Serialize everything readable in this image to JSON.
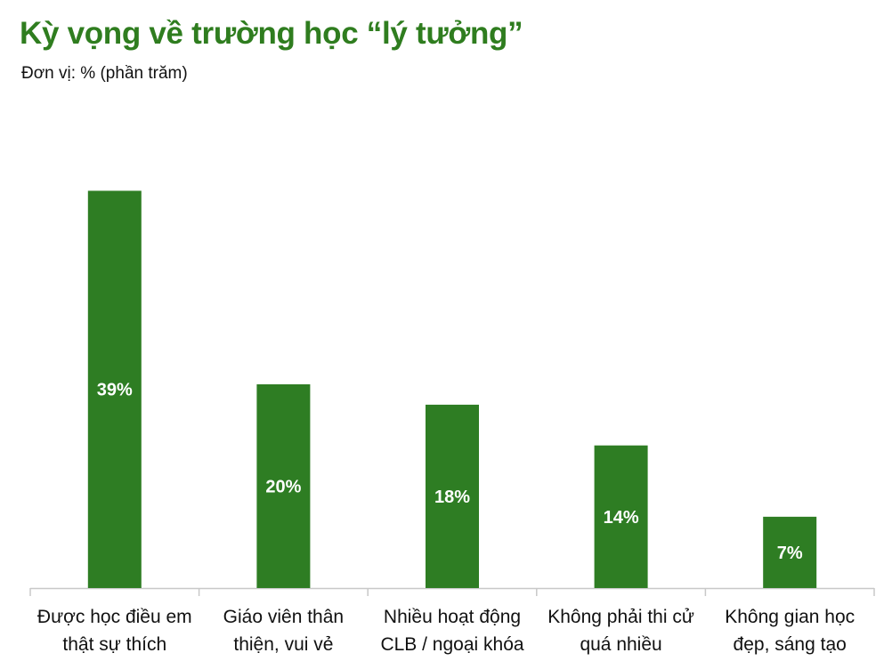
{
  "header": {
    "title": "Kỳ vọng về trường học “lý tưởng”",
    "subtitle": "Đơn vị: % (phần trăm)"
  },
  "colors": {
    "bar": "#2e7d23",
    "title": "#2f7d1f",
    "axis": "#c8c8c8",
    "bar_label": "#ffffff",
    "category_label": "#111111"
  },
  "chart_data": {
    "type": "bar",
    "title": "Kỳ vọng về trường học “lý tưởng”",
    "ylabel": "Đơn vị: % (phần trăm)",
    "xlabel": "",
    "categories": [
      [
        "Được học điều em",
        "thật sự thích"
      ],
      [
        "Giáo viên thân",
        "thiện, vui vẻ"
      ],
      [
        "Nhiều hoạt động",
        "CLB / ngoại khóa"
      ],
      [
        "Không phải thi cử",
        "quá nhiều"
      ],
      [
        "Không gian học",
        "đẹp, sáng tạo"
      ]
    ],
    "values": [
      39,
      20,
      18,
      14,
      7
    ],
    "data_labels": [
      "39%",
      "20%",
      "18%",
      "14%",
      "7%"
    ],
    "ylim": [
      0,
      40
    ],
    "grid": false,
    "legend": "none"
  }
}
